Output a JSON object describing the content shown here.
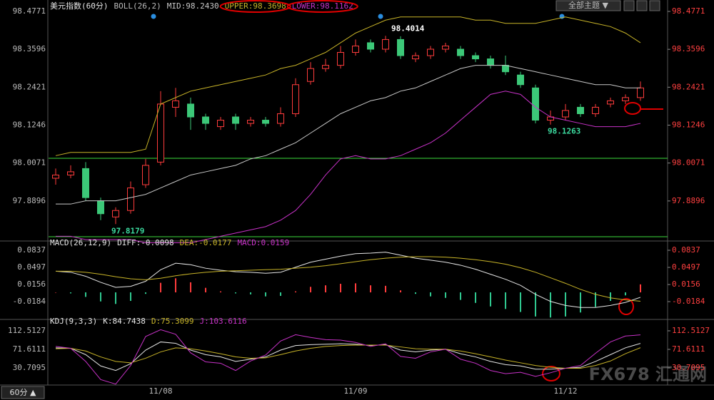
{
  "chart_data": [
    {
      "type": "candlestick",
      "title": "美元指数(60分)",
      "subtitle": "BOLL(26,2)",
      "categories": [
        null,
        null,
        null,
        null,
        null,
        null,
        null,
        "11/08",
        null,
        null,
        null,
        null,
        null,
        null,
        null,
        null,
        null,
        null,
        null,
        null,
        "11/09",
        null,
        null,
        null,
        null,
        null,
        null,
        null,
        null,
        null,
        null,
        null,
        null,
        null,
        "11/12",
        null,
        null,
        null,
        null,
        null
      ],
      "open": [
        97.96,
        97.97,
        97.99,
        97.89,
        97.84,
        97.86,
        97.94,
        98.01,
        98.18,
        98.19,
        98.15,
        98.12,
        98.15,
        98.13,
        98.14,
        98.13,
        98.16,
        98.26,
        98.3,
        98.31,
        98.35,
        98.38,
        98.36,
        98.39,
        98.33,
        98.34,
        98.36,
        98.36,
        98.34,
        98.33,
        98.31,
        98.28,
        98.24,
        98.14,
        98.15,
        98.18,
        98.16,
        98.19,
        98.2,
        98.21
      ],
      "high": [
        97.99,
        98.0,
        98.01,
        97.9,
        97.87,
        97.95,
        98.02,
        98.23,
        98.24,
        98.21,
        98.16,
        98.15,
        98.16,
        98.15,
        98.15,
        98.18,
        98.27,
        98.32,
        98.33,
        98.37,
        98.39,
        98.39,
        98.4014,
        98.4,
        98.35,
        98.37,
        98.38,
        98.37,
        98.35,
        98.34,
        98.34,
        98.29,
        98.25,
        98.17,
        98.19,
        98.19,
        98.19,
        98.21,
        98.22,
        98.26
      ],
      "low": [
        97.94,
        97.96,
        97.89,
        97.83,
        97.8179,
        97.85,
        97.93,
        98.0,
        98.15,
        98.11,
        98.11,
        98.11,
        98.11,
        98.12,
        98.12,
        98.12,
        98.15,
        98.25,
        98.29,
        98.3,
        98.34,
        98.35,
        98.35,
        98.33,
        98.32,
        98.33,
        98.35,
        98.33,
        98.32,
        98.3,
        98.28,
        98.24,
        98.13,
        98.1263,
        98.14,
        98.15,
        98.15,
        98.18,
        98.19,
        98.2
      ],
      "close": [
        97.97,
        97.98,
        97.9,
        97.85,
        97.86,
        97.93,
        98.0,
        98.19,
        98.2,
        98.15,
        98.13,
        98.14,
        98.13,
        98.14,
        98.13,
        98.16,
        98.25,
        98.3,
        98.31,
        98.35,
        98.37,
        98.36,
        98.39,
        98.34,
        98.34,
        98.36,
        98.37,
        98.34,
        98.33,
        98.31,
        98.29,
        98.25,
        98.14,
        98.15,
        98.17,
        98.16,
        98.18,
        98.2,
        98.21,
        98.24
      ],
      "up_color": "#ff3c3c",
      "down_color": "#3cc878",
      "series": [
        {
          "name": "MID:98.2430",
          "color": "#c8c8c8",
          "values": [
            97.88,
            97.88,
            97.89,
            97.89,
            97.89,
            97.9,
            97.91,
            97.93,
            97.95,
            97.97,
            97.98,
            97.99,
            98.0,
            98.02,
            98.03,
            98.05,
            98.07,
            98.1,
            98.13,
            98.16,
            98.18,
            98.2,
            98.21,
            98.23,
            98.24,
            98.26,
            98.28,
            98.3,
            98.31,
            98.31,
            98.31,
            98.3,
            98.29,
            98.28,
            98.27,
            98.26,
            98.25,
            98.25,
            98.24,
            98.24
          ]
        },
        {
          "name": "UPPER:98.3698",
          "color": "#c8b428",
          "values": [
            98.03,
            98.04,
            98.04,
            98.04,
            98.04,
            98.04,
            98.05,
            98.19,
            98.21,
            98.23,
            98.24,
            98.25,
            98.26,
            98.27,
            98.28,
            98.3,
            98.31,
            98.33,
            98.35,
            98.38,
            98.41,
            98.43,
            98.45,
            98.46,
            98.46,
            98.46,
            98.46,
            98.46,
            98.45,
            98.45,
            98.44,
            98.44,
            98.44,
            98.45,
            98.46,
            98.45,
            98.44,
            98.43,
            98.41,
            98.38
          ]
        },
        {
          "name": "LOWER:98.1162",
          "color": "#c832c8",
          "values": [
            97.78,
            97.78,
            97.77,
            97.77,
            97.77,
            97.77,
            97.76,
            97.76,
            97.76,
            97.76,
            97.77,
            97.78,
            97.79,
            97.8,
            97.81,
            97.83,
            97.86,
            97.91,
            97.97,
            98.02,
            98.03,
            98.02,
            98.02,
            98.03,
            98.05,
            98.07,
            98.1,
            98.14,
            98.18,
            98.22,
            98.23,
            98.22,
            98.18,
            98.15,
            98.14,
            98.13,
            98.12,
            98.12,
            98.12,
            98.13
          ]
        }
      ],
      "ylim": [
        97.7721,
        98.4948
      ],
      "yticks": [
        98.4771,
        98.3596,
        98.2421,
        98.1246,
        98.0071,
        97.8896
      ]
    },
    {
      "type": "combo",
      "title": "MACD(26,12,9)",
      "bars": {
        "name": "MACD:0.0159",
        "color": "#c832c8",
        "up_color": "#ff3c3c",
        "down_color": "#30c890",
        "values": [
          0,
          -0.002,
          -0.009,
          -0.018,
          -0.023,
          -0.017,
          -0.003,
          0.019,
          0.028,
          0.02,
          0.009,
          0.002,
          -0.002,
          -0.004,
          -0.008,
          -0.007,
          0.002,
          0.011,
          0.014,
          0.017,
          0.018,
          0.014,
          0.013,
          0.004,
          -0.003,
          -0.008,
          -0.011,
          -0.015,
          -0.021,
          -0.028,
          -0.033,
          -0.039,
          -0.048,
          -0.05,
          -0.048,
          -0.04,
          -0.029,
          -0.017,
          -0.006,
          0.0159
        ]
      },
      "series": [
        {
          "name": "DIFF:-0.0098",
          "color": "#e6e6e6",
          "values": [
            0.042,
            0.04,
            0.032,
            0.02,
            0.01,
            0.012,
            0.022,
            0.045,
            0.058,
            0.055,
            0.048,
            0.044,
            0.041,
            0.04,
            0.038,
            0.04,
            0.05,
            0.06,
            0.066,
            0.072,
            0.077,
            0.078,
            0.08,
            0.074,
            0.068,
            0.064,
            0.06,
            0.054,
            0.046,
            0.036,
            0.026,
            0.014,
            -0.004,
            -0.018,
            -0.026,
            -0.03,
            -0.03,
            -0.026,
            -0.02,
            -0.0098
          ]
        },
        {
          "name": "DEA:-0.0177",
          "color": "#c8b428",
          "values": [
            0.042,
            0.042,
            0.04,
            0.036,
            0.031,
            0.027,
            0.025,
            0.028,
            0.033,
            0.037,
            0.04,
            0.042,
            0.043,
            0.044,
            0.045,
            0.046,
            0.048,
            0.05,
            0.053,
            0.057,
            0.061,
            0.065,
            0.068,
            0.07,
            0.071,
            0.071,
            0.07,
            0.068,
            0.065,
            0.061,
            0.056,
            0.049,
            0.04,
            0.029,
            0.018,
            0.006,
            -0.004,
            -0.011,
            -0.015,
            -0.0177
          ]
        }
      ],
      "ylim": [
        -0.0524,
        0.0993
      ],
      "yticks": [
        0.0837,
        0.0497,
        0.0156,
        -0.0184
      ]
    },
    {
      "type": "line",
      "title": "KDJ(9,3,3)",
      "series": [
        {
          "name": "K:84.7438",
          "color": "#e6e6e6",
          "values": [
            75,
            74,
            60,
            35,
            25,
            40,
            70,
            88,
            85,
            70,
            60,
            55,
            45,
            50,
            55,
            70,
            80,
            82,
            83,
            84,
            83,
            80,
            82,
            70,
            66,
            70,
            72,
            62,
            55,
            45,
            38,
            35,
            28,
            28,
            30,
            32,
            45,
            60,
            75,
            84.7438
          ]
        },
        {
          "name": "D:75.3099",
          "color": "#c8b428",
          "values": [
            73,
            74,
            68,
            55,
            45,
            42,
            52,
            66,
            75,
            73,
            68,
            62,
            55,
            52,
            53,
            60,
            68,
            74,
            78,
            80,
            81,
            81,
            81,
            77,
            73,
            72,
            72,
            68,
            62,
            55,
            48,
            42,
            36,
            32,
            30,
            30,
            36,
            46,
            62,
            75.3099
          ]
        },
        {
          "name": "J:103.6116",
          "color": "#c832c8",
          "values": [
            78,
            74,
            45,
            5,
            -5,
            36,
            100,
            115,
            105,
            64,
            44,
            41,
            25,
            46,
            59,
            90,
            104,
            98,
            93,
            92,
            87,
            78,
            84,
            56,
            52,
            66,
            72,
            50,
            41,
            25,
            18,
            21,
            12,
            20,
            30,
            36,
            63,
            88,
            101,
            103.6116
          ]
        }
      ],
      "ylim": [
        -7.05,
        134.5
      ],
      "yticks": [
        112.5127,
        71.6111,
        30.7095
      ]
    }
  ],
  "ui": {
    "theme_button": "全部主题 ▼",
    "period_button": "60分 ▲",
    "watermark": "FX678 汇通网"
  }
}
